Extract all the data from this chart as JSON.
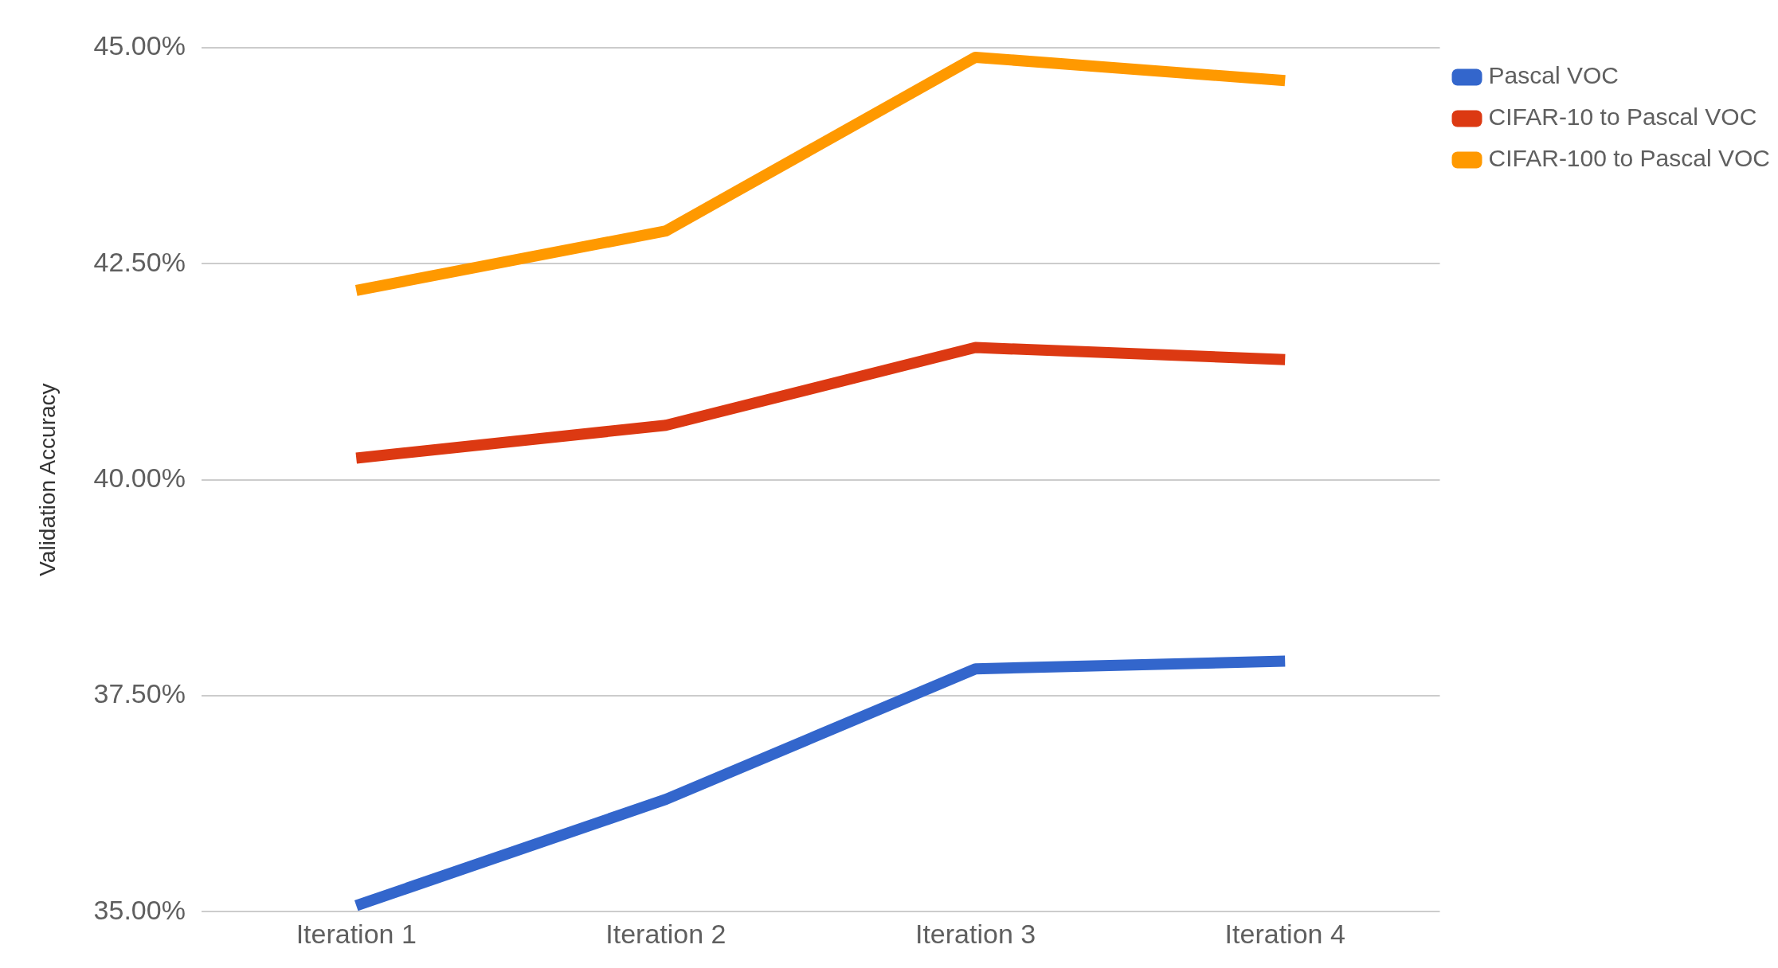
{
  "chart_data": {
    "type": "line",
    "ylabel": "Validation Accuracy",
    "categories": [
      "Iteration 1",
      "Iteration 2",
      "Iteration 3",
      "Iteration 4"
    ],
    "series": [
      {
        "name": "Pascal VOC",
        "color": "#3366cc",
        "values": [
          35.07,
          36.3,
          37.81,
          37.9
        ]
      },
      {
        "name": "CIFAR-10 to Pascal VOC",
        "color": "#dc3912",
        "values": [
          40.25,
          40.63,
          41.53,
          41.39
        ]
      },
      {
        "name": "CIFAR-100 to Pascal VOC",
        "color": "#ff9900",
        "values": [
          42.19,
          42.88,
          44.89,
          44.62
        ]
      }
    ],
    "ylim": [
      35,
      45
    ],
    "yticks": [
      {
        "value": 35,
        "label": "35.00%"
      },
      {
        "value": 37.5,
        "label": "37.50%"
      },
      {
        "value": 40,
        "label": "40.00%"
      },
      {
        "value": 42.5,
        "label": "42.50%"
      },
      {
        "value": 45,
        "label": "45.00%"
      }
    ],
    "grid": "y",
    "legend": "top right",
    "marker": "none",
    "line_style": "solid"
  }
}
